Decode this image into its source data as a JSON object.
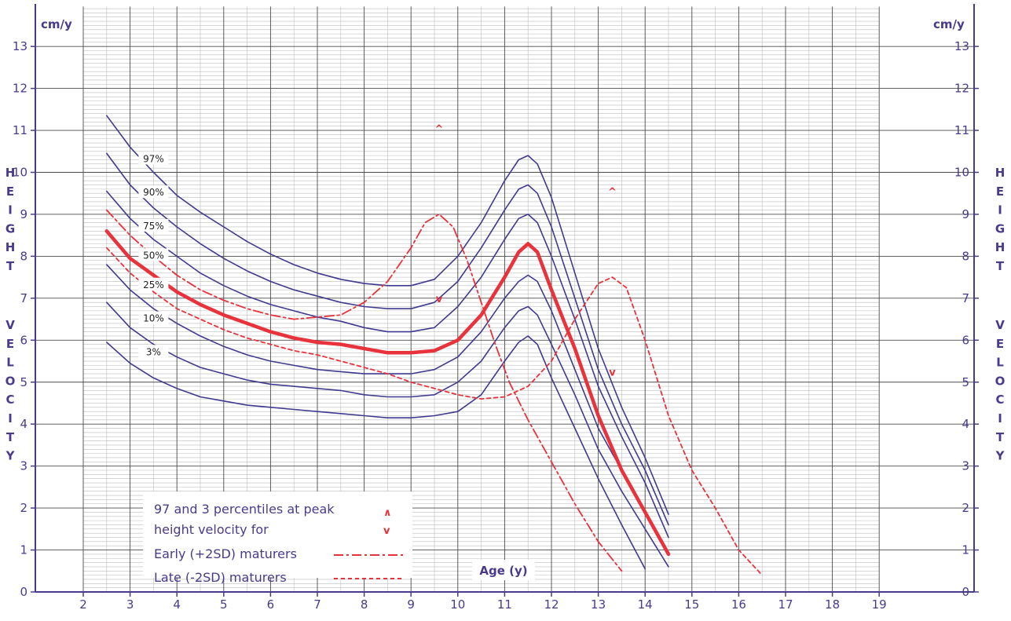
{
  "chart_data": {
    "type": "line",
    "y_unit_label": "cm/y",
    "y_axis_title_letters": {
      "word1": [
        "H",
        "E",
        "I",
        "G",
        "H",
        "T"
      ],
      "word2": [
        "V",
        "E",
        "L",
        "O",
        "C",
        "I",
        "T",
        "Y"
      ]
    },
    "xlabel": "Age (y)",
    "xlim": [
      2,
      19
    ],
    "ylim": [
      0,
      13
    ],
    "x_ticks": [
      2,
      3,
      4,
      5,
      6,
      7,
      8,
      9,
      10,
      11,
      12,
      13,
      14,
      15,
      16,
      17,
      18,
      19
    ],
    "y_ticks": [
      0,
      1,
      2,
      3,
      4,
      5,
      6,
      7,
      8,
      9,
      10,
      11,
      12,
      13
    ],
    "grid": true,
    "colors": {
      "axis": "#4b3a8c",
      "percentile_line": "#3f3a8f",
      "median_line": "#e8323c",
      "maturer_line": "#e8323c",
      "grid_major": "#4b4b4b",
      "grid_minor": "#bdbdbd"
    },
    "percentile_labels": [
      {
        "text": "97%",
        "x": 3.5,
        "y": 10.3
      },
      {
        "text": "90%",
        "x": 3.5,
        "y": 9.5
      },
      {
        "text": "75%",
        "x": 3.5,
        "y": 8.7
      },
      {
        "text": "50%",
        "x": 3.5,
        "y": 8.0
      },
      {
        "text": "25%",
        "x": 3.5,
        "y": 7.3
      },
      {
        "text": "10%",
        "x": 3.5,
        "y": 6.5
      },
      {
        "text": "3%",
        "x": 3.5,
        "y": 5.7
      }
    ],
    "series": [
      {
        "key": "p97",
        "style": "percentile",
        "x": [
          2.5,
          3,
          3.5,
          4,
          4.5,
          5,
          5.5,
          6,
          6.5,
          7,
          7.5,
          8,
          8.5,
          9,
          9.5,
          10,
          10.5,
          11,
          11.3,
          11.5,
          11.7,
          12,
          12.5,
          13,
          13.5,
          14,
          14.5
        ],
        "y": [
          11.35,
          10.6,
          10.0,
          9.45,
          9.05,
          8.7,
          8.35,
          8.05,
          7.8,
          7.6,
          7.45,
          7.35,
          7.3,
          7.3,
          7.45,
          8.0,
          8.8,
          9.8,
          10.3,
          10.4,
          10.2,
          9.4,
          7.6,
          5.8,
          4.4,
          3.2,
          1.85
        ]
      },
      {
        "key": "p90",
        "style": "percentile",
        "x": [
          2.5,
          3,
          3.5,
          4,
          4.5,
          5,
          5.5,
          6,
          6.5,
          7,
          7.5,
          8,
          8.5,
          9,
          9.5,
          10,
          10.5,
          11,
          11.3,
          11.5,
          11.7,
          12,
          12.5,
          13,
          13.5,
          14,
          14.5
        ],
        "y": [
          10.45,
          9.7,
          9.15,
          8.7,
          8.3,
          7.95,
          7.65,
          7.4,
          7.2,
          7.05,
          6.9,
          6.8,
          6.75,
          6.75,
          6.9,
          7.4,
          8.2,
          9.1,
          9.6,
          9.7,
          9.5,
          8.7,
          7.0,
          5.3,
          4.0,
          2.9,
          1.6
        ]
      },
      {
        "key": "p75",
        "style": "percentile",
        "x": [
          2.5,
          3,
          3.5,
          4,
          4.5,
          5,
          5.5,
          6,
          6.5,
          7,
          7.5,
          8,
          8.5,
          9,
          9.5,
          10,
          10.5,
          11,
          11.3,
          11.5,
          11.7,
          12,
          12.5,
          13,
          13.5,
          14,
          14.5
        ],
        "y": [
          9.55,
          8.9,
          8.4,
          8.0,
          7.6,
          7.3,
          7.05,
          6.85,
          6.7,
          6.55,
          6.45,
          6.3,
          6.2,
          6.2,
          6.3,
          6.8,
          7.5,
          8.4,
          8.9,
          9.0,
          8.8,
          8.0,
          6.5,
          4.9,
          3.7,
          2.6,
          1.3
        ]
      },
      {
        "key": "p25",
        "style": "percentile",
        "x": [
          2.5,
          3,
          3.5,
          4,
          4.5,
          5,
          5.5,
          6,
          6.5,
          7,
          7.5,
          8,
          8.5,
          9,
          9.5,
          10,
          10.5,
          11,
          11.3,
          11.5,
          11.7,
          12,
          12.5,
          13,
          13.5,
          14,
          14.5
        ],
        "y": [
          7.8,
          7.2,
          6.75,
          6.4,
          6.1,
          5.85,
          5.65,
          5.5,
          5.4,
          5.3,
          5.25,
          5.2,
          5.2,
          5.2,
          5.3,
          5.6,
          6.2,
          7.0,
          7.4,
          7.55,
          7.4,
          6.7,
          5.3,
          3.9,
          2.9,
          1.9,
          0.9
        ]
      },
      {
        "key": "p10",
        "style": "percentile",
        "x": [
          2.5,
          3,
          3.5,
          4,
          4.5,
          5,
          5.5,
          6,
          6.5,
          7,
          7.5,
          8,
          8.5,
          9,
          9.5,
          10,
          10.5,
          11,
          11.3,
          11.5,
          11.7,
          12,
          12.5,
          13,
          13.5,
          14,
          14.5
        ],
        "y": [
          6.9,
          6.3,
          5.9,
          5.6,
          5.35,
          5.2,
          5.05,
          4.95,
          4.9,
          4.85,
          4.8,
          4.7,
          4.65,
          4.65,
          4.7,
          5.0,
          5.5,
          6.3,
          6.7,
          6.8,
          6.6,
          5.9,
          4.7,
          3.4,
          2.4,
          1.5,
          0.6
        ]
      },
      {
        "key": "p3",
        "style": "percentile",
        "x": [
          2.5,
          3,
          3.5,
          4,
          4.5,
          5,
          5.5,
          6,
          6.5,
          7,
          7.5,
          8,
          8.5,
          9,
          9.5,
          10,
          10.5,
          11,
          11.3,
          11.5,
          11.7,
          12,
          12.5,
          13,
          13.5,
          14
        ],
        "y": [
          5.95,
          5.45,
          5.1,
          4.85,
          4.65,
          4.55,
          4.45,
          4.4,
          4.35,
          4.3,
          4.25,
          4.2,
          4.15,
          4.15,
          4.2,
          4.3,
          4.7,
          5.5,
          5.95,
          6.1,
          5.9,
          5.1,
          3.9,
          2.7,
          1.6,
          0.55
        ]
      },
      {
        "key": "p50",
        "style": "median",
        "x": [
          2.5,
          3,
          3.5,
          4,
          4.5,
          5,
          5.5,
          6,
          6.5,
          7,
          7.5,
          8,
          8.5,
          9,
          9.5,
          10,
          10.5,
          11,
          11.3,
          11.5,
          11.7,
          12,
          12.5,
          13,
          13.5,
          14,
          14.3,
          14.5
        ],
        "y": [
          8.6,
          7.95,
          7.55,
          7.15,
          6.85,
          6.6,
          6.4,
          6.2,
          6.05,
          5.95,
          5.9,
          5.8,
          5.7,
          5.7,
          5.75,
          6.0,
          6.6,
          7.5,
          8.1,
          8.3,
          8.1,
          7.2,
          5.8,
          4.2,
          2.9,
          1.9,
          1.3,
          0.9
        ]
      },
      {
        "key": "early",
        "style": "dashdot",
        "x": [
          2.5,
          3,
          3.5,
          4,
          4.5,
          5,
          5.5,
          6,
          6.5,
          7,
          7.5,
          8,
          8.5,
          9,
          9.3,
          9.6,
          9.9,
          10.2,
          10.5,
          10.8,
          11.1,
          11.5,
          12,
          12.5,
          13,
          13.5
        ],
        "y": [
          9.1,
          8.5,
          8.0,
          7.55,
          7.2,
          6.95,
          6.75,
          6.6,
          6.5,
          6.55,
          6.6,
          6.9,
          7.4,
          8.2,
          8.8,
          9.0,
          8.7,
          7.9,
          6.9,
          5.9,
          5.0,
          4.1,
          3.1,
          2.1,
          1.2,
          0.5
        ]
      },
      {
        "key": "late",
        "style": "dashed",
        "x": [
          2.5,
          3,
          3.5,
          4,
          4.5,
          5,
          5.5,
          6,
          6.5,
          7,
          7.5,
          8,
          8.5,
          9,
          9.5,
          10,
          10.5,
          11,
          11.5,
          12,
          12.5,
          13,
          13.3,
          13.6,
          14,
          14.5,
          15,
          15.5,
          16,
          16.5
        ],
        "y": [
          8.2,
          7.6,
          7.15,
          6.75,
          6.5,
          6.25,
          6.05,
          5.9,
          5.75,
          5.65,
          5.5,
          5.35,
          5.2,
          5.0,
          4.85,
          4.7,
          4.6,
          4.65,
          4.9,
          5.5,
          6.5,
          7.35,
          7.5,
          7.25,
          6.0,
          4.2,
          2.9,
          2.0,
          1.0,
          0.4
        ]
      }
    ],
    "annotations": [
      {
        "symbol": "^",
        "x": 9.6,
        "y": 11.05
      },
      {
        "symbol": "v",
        "x": 9.6,
        "y": 7.0
      },
      {
        "symbol": "^",
        "x": 13.3,
        "y": 9.55
      },
      {
        "symbol": "v",
        "x": 13.3,
        "y": 5.25
      }
    ],
    "legend": {
      "placement": "bottom-left",
      "line1": "97 and 3 percentiles at peak",
      "line2": "height velocity for",
      "up_symbol": "∧",
      "down_symbol": "v",
      "early": "Early (+2SD) maturers",
      "late": "Late (-2SD) maturers"
    }
  }
}
